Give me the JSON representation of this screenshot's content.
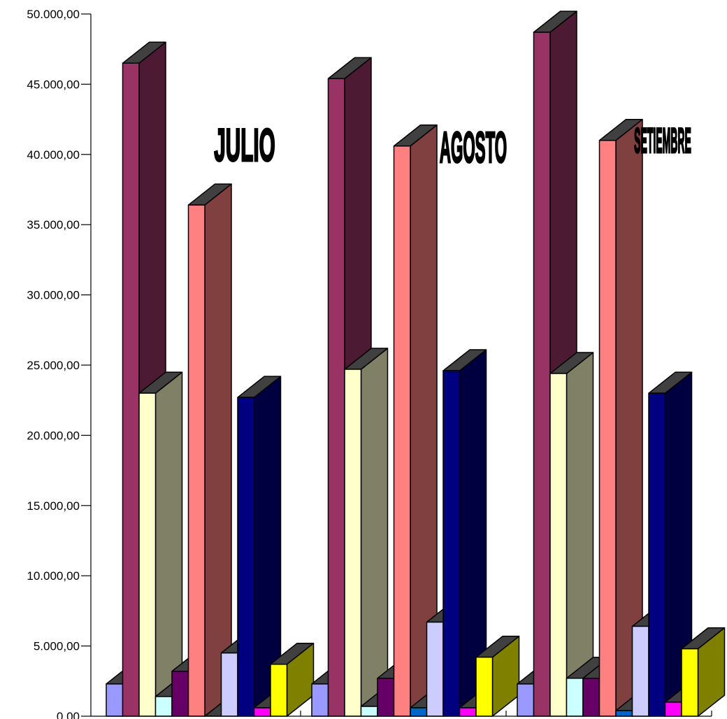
{
  "chart_data": {
    "type": "bar",
    "style": "3d-clustered",
    "ylim": [
      0,
      50000
    ],
    "y_ticks": [
      "0,00",
      "5.000,00",
      "10.000,00",
      "15.000,00",
      "20.000,00",
      "25.000,00",
      "30.000,00",
      "35.000,00",
      "40.000,00",
      "45.000,00",
      "50.000,00"
    ],
    "y_tick_values": [
      0,
      5000,
      10000,
      15000,
      20000,
      25000,
      30000,
      35000,
      40000,
      45000,
      50000
    ],
    "categories": [
      "JULIO",
      "AGOSTO",
      "SETIEMBRE"
    ],
    "grid": false,
    "series": [
      {
        "color": "#9999ff",
        "values": [
          2300,
          2300,
          2300
        ]
      },
      {
        "color": "#993366",
        "values": [
          46500,
          45400,
          48700
        ]
      },
      {
        "color": "#ffffcc",
        "values": [
          23000,
          24700,
          24400
        ]
      },
      {
        "color": "#ccffff",
        "values": [
          1400,
          700,
          2700
        ]
      },
      {
        "color": "#660066",
        "values": [
          3200,
          2700,
          2700
        ]
      },
      {
        "color": "#ff8080",
        "values": [
          36400,
          40600,
          41000
        ]
      },
      {
        "color": "#0066cc",
        "values": [
          0,
          600,
          400
        ]
      },
      {
        "color": "#ccccff",
        "values": [
          4500,
          6700,
          6400
        ]
      },
      {
        "color": "#000080",
        "values": [
          22700,
          24600,
          23000
        ]
      },
      {
        "color": "#ff00ff",
        "values": [
          600,
          600,
          1000
        ]
      },
      {
        "color": "#ffff00",
        "values": [
          3700,
          4200,
          4800
        ]
      }
    ]
  }
}
